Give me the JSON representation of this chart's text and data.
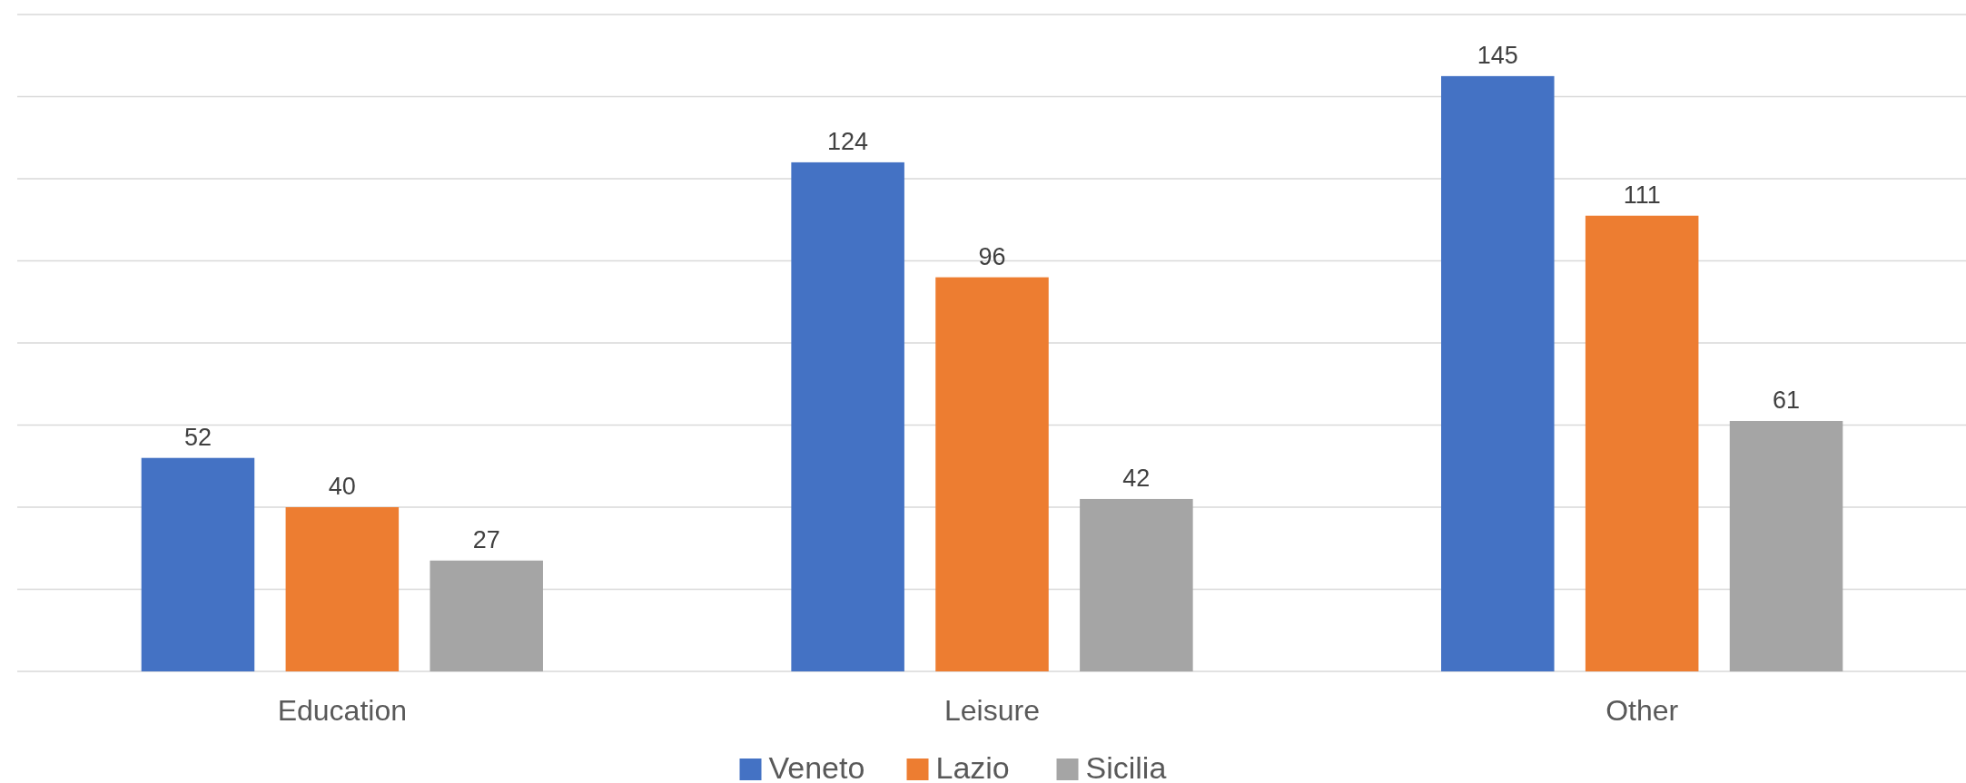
{
  "chart_data": {
    "type": "bar",
    "categories": [
      "Education",
      "Leisure",
      "Other"
    ],
    "series": [
      {
        "name": "Veneto",
        "color": "#4472c4",
        "values": [
          52,
          124,
          145
        ]
      },
      {
        "name": "Lazio",
        "color": "#ed7d31",
        "values": [
          40,
          96,
          111
        ]
      },
      {
        "name": "Sicilia",
        "color": "#a5a5a5",
        "values": [
          27,
          42,
          61
        ]
      }
    ],
    "ylim": [
      0,
      160
    ],
    "yticks": [
      {
        "value": 0,
        "label": null
      },
      {
        "value": 20,
        "label": null
      },
      {
        "value": 40,
        "label": null
      },
      {
        "value": 60,
        "label": null
      },
      {
        "value": 80,
        "label": null
      },
      {
        "value": 100,
        "label": null
      },
      {
        "value": 120,
        "label": null
      },
      {
        "value": 140,
        "label": null
      },
      {
        "value": 160,
        "label": null
      }
    ],
    "grid": "y",
    "tick_labels": "x",
    "data_labels": true,
    "legend": "bottom"
  }
}
